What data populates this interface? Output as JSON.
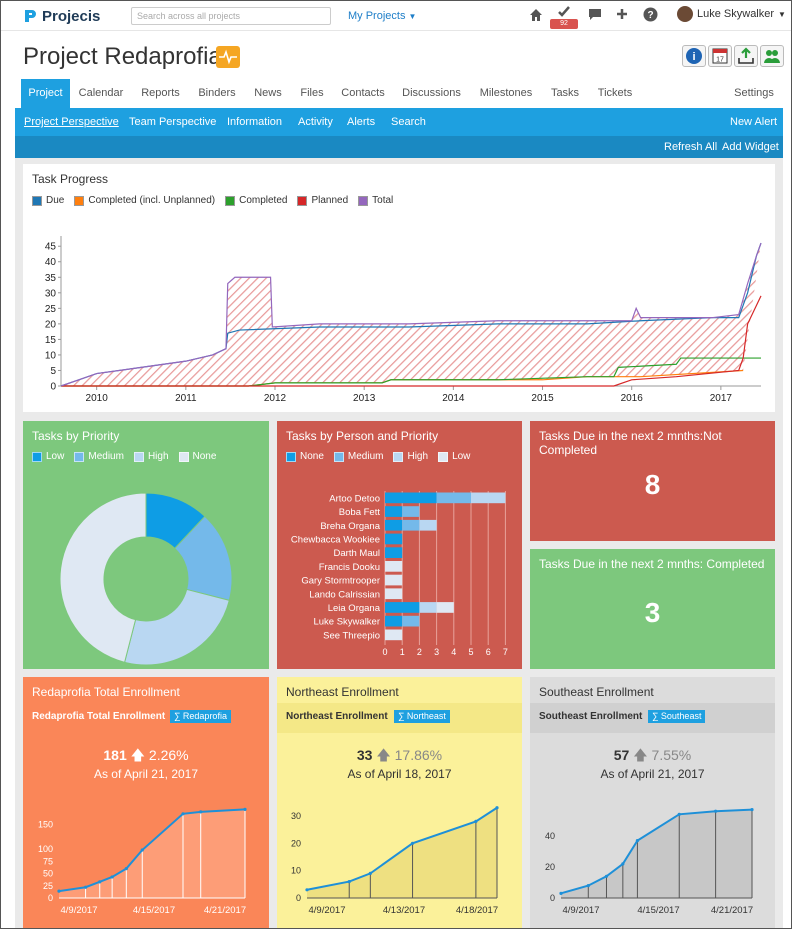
{
  "app": {
    "name": "Projecis",
    "search_placeholder": "Search across all projects",
    "my_projects": "My Projects",
    "badge_count": "92",
    "user_name": "Luke Skywalker"
  },
  "project": {
    "title": "Project Redaprofia"
  },
  "tabs": [
    "Project",
    "Calendar",
    "Reports",
    "Binders",
    "News",
    "Files",
    "Contacts",
    "Discussions",
    "Milestones",
    "Tasks",
    "Tickets",
    "Settings"
  ],
  "subnav": {
    "items": [
      "Project Perspective",
      "Team Perspective",
      "Information",
      "Activity",
      "Alerts",
      "Search"
    ],
    "new_alert": "New Alert"
  },
  "actions": {
    "refresh": "Refresh All",
    "add_widget": "Add Widget"
  },
  "task_progress": {
    "title": "Task Progress",
    "legend": [
      {
        "name": "Due",
        "color": "#1f77b4"
      },
      {
        "name": "Completed (incl. Unplanned)",
        "color": "#ff7f0e"
      },
      {
        "name": "Completed",
        "color": "#2ca02c"
      },
      {
        "name": "Planned",
        "color": "#d62728"
      },
      {
        "name": "Total",
        "color": "#9467bd"
      }
    ]
  },
  "priority": {
    "title": "Tasks by Priority",
    "legend": [
      "Low",
      "Medium",
      "High",
      "None"
    ]
  },
  "person": {
    "title": "Tasks by Person and Priority",
    "legend": [
      "None",
      "Medium",
      "High",
      "Low"
    ]
  },
  "due_not_completed": {
    "title": "Tasks Due in the next 2 mnths:Not Completed",
    "value": "8"
  },
  "due_completed": {
    "title": "Tasks Due in the next 2 mnths: Completed",
    "value": "3"
  },
  "enroll": [
    {
      "title": "Redaprofia Total Enrollment",
      "label": "Redaprofia Total Enrollment",
      "tag": "∑ Redaprofia",
      "value": "181",
      "change": "2.26%",
      "asof": "As of April 21, 2017"
    },
    {
      "title": "Northeast Enrollment",
      "label": "Northeast Enrollment",
      "tag": "∑ Northeast",
      "value": "33",
      "change": "17.86%",
      "asof": "As of April 18, 2017"
    },
    {
      "title": "Southeast Enrollment",
      "label": "Southeast Enrollment",
      "tag": "∑ Southeast",
      "value": "57",
      "change": "7.55%",
      "asof": "As of April 21, 2017"
    }
  ],
  "chart_data": [
    {
      "type": "line",
      "title": "Task Progress",
      "x_ticks": [
        "2010",
        "2011",
        "2012",
        "2013",
        "2014",
        "2015",
        "2016",
        "2017"
      ],
      "y_ticks": [
        0,
        5,
        10,
        15,
        20,
        25,
        30,
        35,
        40,
        45
      ],
      "ylim": [
        0,
        47
      ],
      "xlim": [
        2009.6,
        2017.45
      ],
      "series": [
        {
          "name": "Due",
          "color": "#1f77b4",
          "points": [
            [
              2009.6,
              0
            ],
            [
              2009.8,
              2
            ],
            [
              2010.0,
              4
            ],
            [
              2010.5,
              6
            ],
            [
              2011.0,
              8
            ],
            [
              2011.3,
              10
            ],
            [
              2011.45,
              12
            ],
            [
              2011.47,
              17
            ],
            [
              2011.6,
              18
            ],
            [
              2012.5,
              19
            ],
            [
              2013.5,
              19
            ],
            [
              2014.5,
              20
            ],
            [
              2015.5,
              20
            ],
            [
              2016.1,
              21
            ],
            [
              2016.9,
              22
            ],
            [
              2017.2,
              22
            ],
            [
              2017.3,
              30
            ],
            [
              2017.4,
              42
            ],
            [
              2017.45,
              46
            ]
          ]
        },
        {
          "name": "Completed (incl. Unplanned)",
          "color": "#ff7f0e",
          "points": [
            [
              2009.6,
              0
            ],
            [
              2011.5,
              0
            ],
            [
              2011.7,
              0
            ],
            [
              2012.0,
              1
            ],
            [
              2013.2,
              1
            ],
            [
              2013.3,
              2
            ],
            [
              2015.0,
              2
            ],
            [
              2015.5,
              3
            ],
            [
              2016.1,
              3
            ],
            [
              2017.25,
              5
            ]
          ]
        },
        {
          "name": "Completed",
          "color": "#2ca02c",
          "points": [
            [
              2009.6,
              0
            ],
            [
              2011.5,
              0
            ],
            [
              2011.7,
              0
            ],
            [
              2012.0,
              1
            ],
            [
              2013.2,
              1
            ],
            [
              2013.3,
              2
            ],
            [
              2014.5,
              2
            ],
            [
              2015.5,
              3
            ],
            [
              2015.8,
              3
            ],
            [
              2015.85,
              6
            ],
            [
              2016.5,
              7
            ],
            [
              2016.55,
              9
            ],
            [
              2017.45,
              9
            ]
          ]
        },
        {
          "name": "Planned",
          "color": "#d62728",
          "points": [
            [
              2009.6,
              0
            ],
            [
              2011.5,
              0
            ],
            [
              2011.7,
              0
            ],
            [
              2013.2,
              0
            ],
            [
              2013.3,
              0
            ],
            [
              2015.8,
              0
            ],
            [
              2016.0,
              2
            ],
            [
              2016.5,
              3
            ],
            [
              2017.2,
              5
            ],
            [
              2017.25,
              9
            ],
            [
              2017.3,
              20
            ],
            [
              2017.45,
              29
            ]
          ]
        },
        {
          "name": "Total",
          "color": "#9467bd",
          "points": [
            [
              2009.6,
              0
            ],
            [
              2009.8,
              2
            ],
            [
              2010.0,
              4
            ],
            [
              2010.5,
              6
            ],
            [
              2011.0,
              8
            ],
            [
              2011.3,
              10
            ],
            [
              2011.45,
              12
            ],
            [
              2011.47,
              33
            ],
            [
              2011.55,
              35
            ],
            [
              2011.95,
              35
            ],
            [
              2011.97,
              19
            ],
            [
              2012.5,
              20
            ],
            [
              2013.5,
              20
            ],
            [
              2014.5,
              21
            ],
            [
              2015.5,
              21
            ],
            [
              2016.0,
              21
            ],
            [
              2016.05,
              25
            ],
            [
              2016.1,
              22
            ],
            [
              2016.9,
              22
            ],
            [
              2017.2,
              23
            ],
            [
              2017.3,
              33
            ],
            [
              2017.4,
              42
            ],
            [
              2017.45,
              46
            ]
          ]
        }
      ]
    },
    {
      "type": "pie",
      "title": "Tasks by Priority",
      "slices": [
        {
          "label": "Low",
          "value": 12,
          "color": "#0e9de5"
        },
        {
          "label": "Medium",
          "value": 17,
          "color": "#74b9ea"
        },
        {
          "label": "High",
          "value": 25,
          "color": "#b9d7f2"
        },
        {
          "label": "None",
          "value": 46,
          "color": "#dfe8f3"
        }
      ]
    },
    {
      "type": "bar",
      "title": "Tasks by Person and Priority",
      "categories": [
        "Artoo Detoo",
        "Boba Fett",
        "Breha Organa",
        "Chewbacca Wookiee",
        "Darth Maul",
        "Francis Dooku",
        "Gary Stormtrooper",
        "Lando Calrissian",
        "Leia Organa",
        "Luke Skywalker",
        "See Threepio"
      ],
      "x_ticks": [
        0,
        1,
        2,
        3,
        4,
        5,
        6,
        7
      ],
      "series": [
        {
          "name": "None",
          "color": "#0e9de5",
          "values": [
            3,
            1,
            1,
            1,
            1,
            0,
            0,
            0,
            2,
            1,
            0
          ]
        },
        {
          "name": "Medium",
          "color": "#74b9ea",
          "values": [
            2,
            1,
            1,
            0,
            0,
            0,
            0,
            0,
            0,
            1,
            0
          ]
        },
        {
          "name": "High",
          "color": "#b9d7f2",
          "values": [
            2,
            0,
            1,
            0,
            0,
            0,
            0,
            0,
            1,
            0,
            0
          ]
        },
        {
          "name": "Low",
          "color": "#dfe8f3",
          "values": [
            0,
            0,
            0,
            0,
            0,
            1,
            1,
            1,
            1,
            0,
            1
          ]
        }
      ]
    },
    {
      "type": "area",
      "title": "Redaprofia Total Enrollment",
      "x_ticks": [
        "4/9/2017",
        "4/15/2017",
        "4/21/2017"
      ],
      "y_ticks": [
        0,
        25,
        50,
        75,
        100,
        150
      ],
      "ylim": [
        0,
        190
      ],
      "points": [
        [
          0,
          14
        ],
        [
          1.5,
          22
        ],
        [
          2.3,
          33
        ],
        [
          3,
          43
        ],
        [
          3.8,
          60
        ],
        [
          4.7,
          98
        ],
        [
          7,
          172
        ],
        [
          8,
          176
        ],
        [
          10.5,
          181
        ]
      ]
    },
    {
      "type": "area",
      "title": "Northeast Enrollment",
      "x_ticks": [
        "4/9/2017",
        "4/13/2017",
        "4/18/2017"
      ],
      "y_ticks": [
        0,
        10,
        20,
        30
      ],
      "ylim": [
        0,
        34
      ],
      "points": [
        [
          0,
          3
        ],
        [
          2,
          6
        ],
        [
          3,
          9
        ],
        [
          5,
          20
        ],
        [
          8,
          28
        ],
        [
          9,
          33
        ]
      ]
    },
    {
      "type": "area",
      "title": "Southeast Enrollment",
      "x_ticks": [
        "4/9/2017",
        "4/15/2017",
        "4/21/2017"
      ],
      "y_ticks": [
        0,
        20,
        40
      ],
      "ylim": [
        0,
        60
      ],
      "points": [
        [
          0,
          3
        ],
        [
          1.5,
          8
        ],
        [
          2.5,
          14
        ],
        [
          3.4,
          22
        ],
        [
          4.2,
          37
        ],
        [
          6.5,
          54
        ],
        [
          8.5,
          56
        ],
        [
          10.5,
          57
        ]
      ]
    }
  ]
}
